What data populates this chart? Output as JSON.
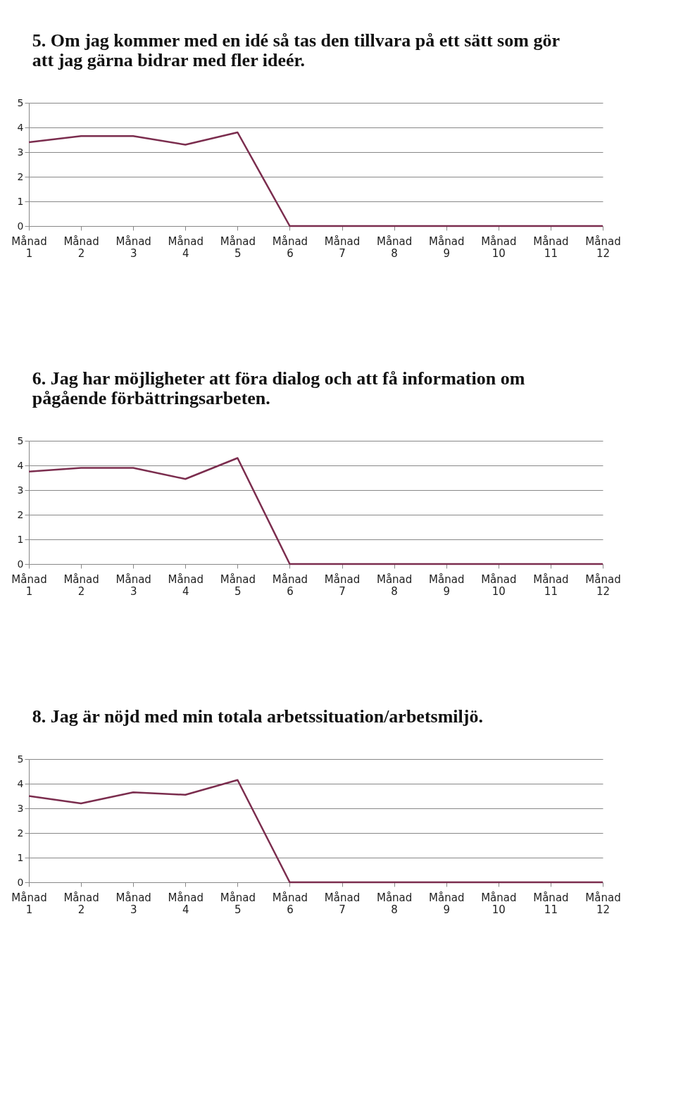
{
  "chart_data": [
    {
      "type": "line",
      "title": "5. Om jag kommer med en idé så tas den tillvara på ett sätt som gör att jag gärna bidrar med fler ideér.",
      "categories": [
        "Månad 1",
        "Månad 2",
        "Månad 3",
        "Månad 4",
        "Månad 5",
        "Månad 6",
        "Månad 7",
        "Månad 8",
        "Månad 9",
        "Månad 10",
        "Månad 11",
        "Månad 12"
      ],
      "series": [
        {
          "color": "#7b2d4e",
          "values": [
            3.4,
            3.65,
            3.65,
            3.3,
            3.8,
            0,
            0,
            0,
            0,
            0,
            0,
            0
          ]
        }
      ],
      "ylim": [
        0,
        5
      ],
      "yticks": [
        0,
        1,
        2,
        3,
        4,
        5
      ],
      "grid": "y",
      "marker": "none"
    },
    {
      "type": "line",
      "title": "6. Jag har möjligheter att föra dialog och att få information om pågående förbättringsarbeten.",
      "categories": [
        "Månad 1",
        "Månad 2",
        "Månad 3",
        "Månad 4",
        "Månad 5",
        "Månad 6",
        "Månad 7",
        "Månad 8",
        "Månad 9",
        "Månad 10",
        "Månad 11",
        "Månad 12"
      ],
      "series": [
        {
          "color": "#7b2d4e",
          "values": [
            3.75,
            3.9,
            3.9,
            3.45,
            4.3,
            0,
            0,
            0,
            0,
            0,
            0,
            0
          ]
        }
      ],
      "ylim": [
        0,
        5
      ],
      "yticks": [
        0,
        1,
        2,
        3,
        4,
        5
      ],
      "grid": "y",
      "marker": "none"
    },
    {
      "type": "line",
      "title": "8. Jag är nöjd med min totala arbetssituation/arbetsmiljö.",
      "categories": [
        "Månad 1",
        "Månad 2",
        "Månad 3",
        "Månad 4",
        "Månad 5",
        "Månad 6",
        "Månad 7",
        "Månad 8",
        "Månad 9",
        "Månad 10",
        "Månad 11",
        "Månad 12"
      ],
      "series": [
        {
          "color": "#7b2d4e",
          "values": [
            3.5,
            3.2,
            3.65,
            3.55,
            4.15,
            0,
            0,
            0,
            0,
            0,
            0,
            0
          ]
        }
      ],
      "ylim": [
        0,
        5
      ],
      "yticks": [
        0,
        1,
        2,
        3,
        4,
        5
      ],
      "grid": "y",
      "marker": "none"
    }
  ]
}
